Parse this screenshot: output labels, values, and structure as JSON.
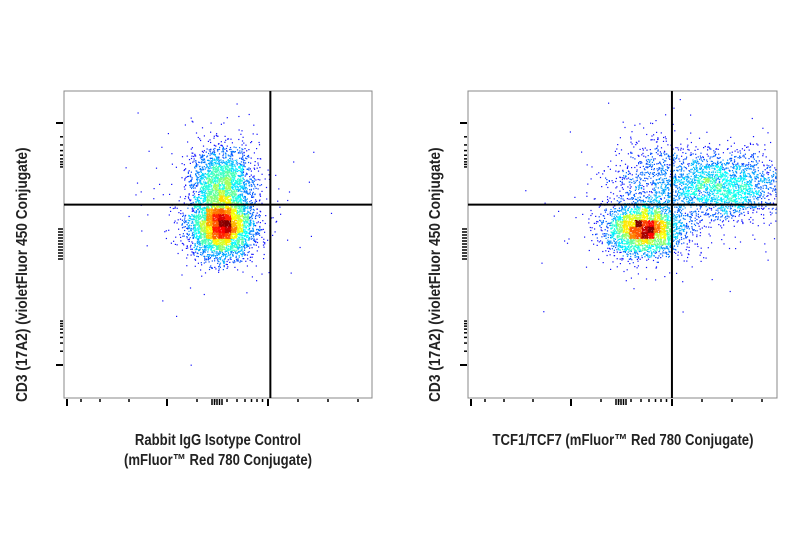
{
  "chart_data": [
    {
      "type": "scatter",
      "subtype": "flow-cytometry-density-dotplot",
      "xlabel_lines": [
        "Rabbit IgG Isotype Control",
        "(mFluor™ Red 780 Conjugate)"
      ],
      "ylabel": "CD3 (17A2) (violetFluor 450 Conjugate)",
      "axis_scale": "log (unlabeled ticks)",
      "xlim": [
        0,
        100
      ],
      "ylim": [
        0,
        100
      ],
      "quadrant_gate": {
        "x": 67,
        "y": 63
      },
      "colormap": "jet density (blue low → red high)",
      "populations": [
        {
          "center": [
            51,
            56
          ],
          "sd": [
            5,
            5
          ],
          "weight": 0.65
        },
        {
          "center": [
            51,
            70
          ],
          "sd": [
            5,
            6
          ],
          "weight": 0.35
        }
      ]
    },
    {
      "type": "scatter",
      "subtype": "flow-cytometry-density-dotplot",
      "xlabel_lines": [
        "TCF1/TCF7 (mFluor™ Red 780 Conjugate)"
      ],
      "ylabel": "CD3 (17A2) (violetFluor 450 Conjugate)",
      "axis_scale": "log (unlabeled ticks)",
      "xlim": [
        0,
        100
      ],
      "ylim": [
        0,
        100
      ],
      "quadrant_gate": {
        "x": 66,
        "y": 63
      },
      "colormap": "jet density (blue low → red high)",
      "populations": [
        {
          "center": [
            57,
            55
          ],
          "sd": [
            6,
            4
          ],
          "weight": 0.5
        },
        {
          "center": [
            82,
            69
          ],
          "sd": [
            10,
            5.5
          ],
          "weight": 0.38
        },
        {
          "center": [
            60,
            70
          ],
          "sd": [
            8,
            8
          ],
          "weight": 0.12
        }
      ]
    }
  ]
}
